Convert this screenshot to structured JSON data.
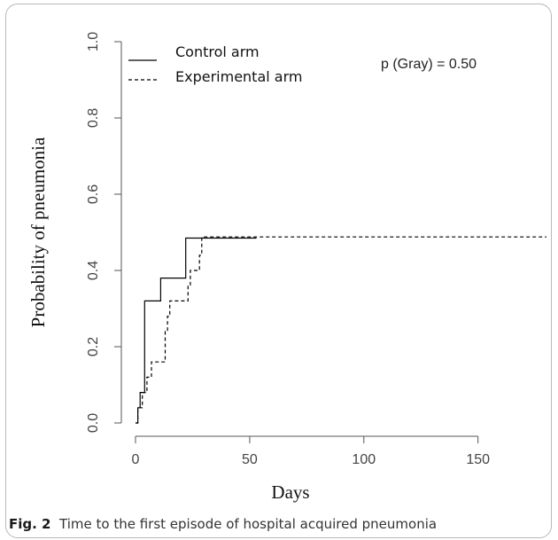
{
  "chart_data": {
    "type": "line",
    "subtype": "step",
    "xlabel": "Days",
    "ylabel": "Probability of pneumonia",
    "xlim": [
      0,
      180
    ],
    "ylim": [
      0,
      1
    ],
    "xticks": [
      0,
      50,
      100,
      150
    ],
    "yticks": [
      "0.0",
      "0.2",
      "0.4",
      "0.6",
      "0.8",
      "1.0"
    ],
    "grid": false,
    "legend_position": "top-left",
    "annotation": "p (Gray) = 0.50",
    "series": [
      {
        "name": "Control arm",
        "line_style": "solid",
        "color": "#000000",
        "points": [
          [
            0,
            0.0
          ],
          [
            1,
            0.04
          ],
          [
            2,
            0.08
          ],
          [
            4,
            0.32
          ],
          [
            11,
            0.38
          ],
          [
            22,
            0.485
          ],
          [
            53,
            0.485
          ]
        ]
      },
      {
        "name": "Experimental arm",
        "line_style": "dashed",
        "color": "#000000",
        "points": [
          [
            0,
            0.0
          ],
          [
            1,
            0.04
          ],
          [
            3,
            0.08
          ],
          [
            5,
            0.12
          ],
          [
            7,
            0.16
          ],
          [
            13,
            0.24
          ],
          [
            14,
            0.28
          ],
          [
            15,
            0.32
          ],
          [
            23,
            0.36
          ],
          [
            24,
            0.4
          ],
          [
            28,
            0.44
          ],
          [
            29,
            0.488
          ],
          [
            180,
            0.488
          ]
        ]
      }
    ]
  },
  "caption": {
    "label": "Fig. 2",
    "text": "Time to the first episode of hospital acquired pneumonia"
  }
}
